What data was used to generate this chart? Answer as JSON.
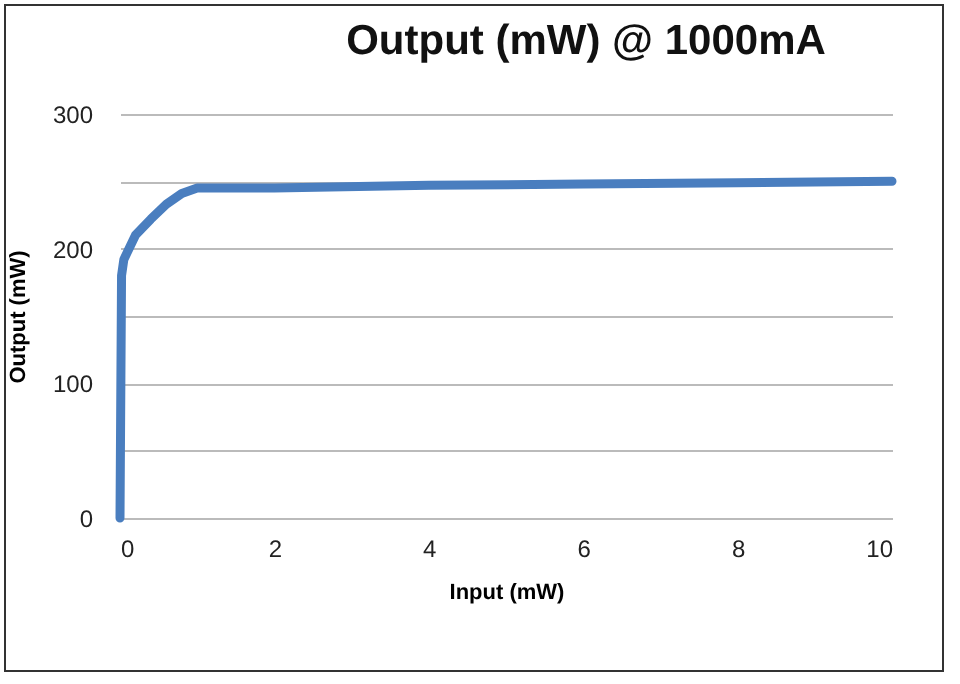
{
  "chart_data": {
    "type": "line",
    "title": "Output (mW) @ 1000mA",
    "xlabel": "Input (mW)",
    "ylabel": "Output (mW)",
    "x": [
      0,
      0.02,
      0.05,
      0.2,
      0.4,
      0.6,
      0.8,
      1,
      2,
      4,
      6,
      8,
      10
    ],
    "series": [
      {
        "color": "#4a7ebf",
        "values": [
          0,
          180,
          192,
          210,
          222,
          233,
          241,
          245,
          245,
          247,
          248,
          249,
          250
        ]
      }
    ],
    "xlim": [
      0,
      10
    ],
    "xticks": [
      0,
      2,
      4,
      6,
      8,
      10
    ],
    "ylim": [
      0,
      300
    ],
    "yticks": [
      0,
      {
        "value": 50,
        "label": null
      },
      100,
      {
        "value": 150,
        "label": null
      },
      200,
      {
        "value": 250,
        "label": null
      },
      300
    ],
    "grid": "y",
    "marker": "none",
    "line_style": "solid"
  }
}
